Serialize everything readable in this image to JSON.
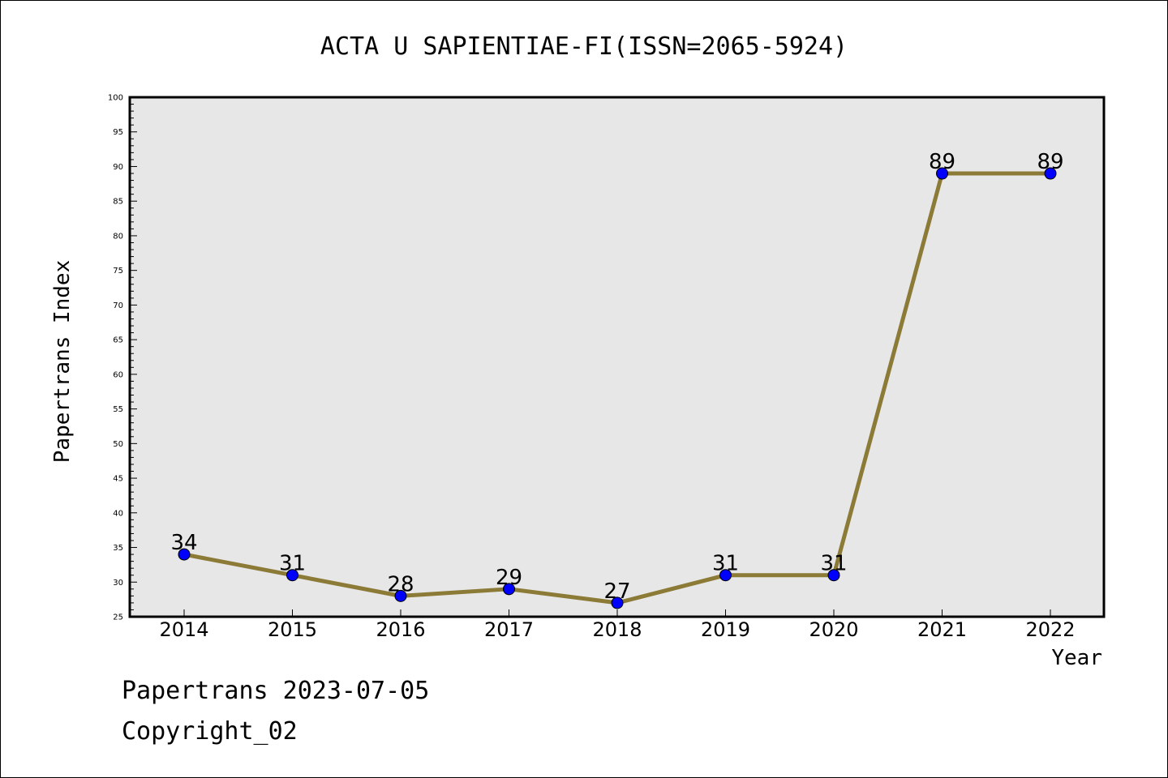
{
  "chart_data": {
    "type": "line",
    "title": "ACTA U SAPIENTIAE-FI(ISSN=2065-5924)",
    "xlabel": "Year",
    "ylabel": "Papertrans Index",
    "categories": [
      "2014",
      "2015",
      "2016",
      "2017",
      "2018",
      "2019",
      "2020",
      "2021",
      "2022"
    ],
    "series": [
      {
        "values": [
          34,
          31,
          28,
          29,
          27,
          31,
          31,
          89,
          89
        ]
      }
    ],
    "ylim": [
      25,
      100
    ],
    "y_major_step": 5,
    "y_minor_step": 1,
    "data_labels": true,
    "grid": false,
    "colors": {
      "plot_background": "#e7e7e7",
      "line": "#8c7a37",
      "marker": "#0000ff"
    }
  },
  "footer": {
    "line1": "Papertrans 2023-07-05",
    "line2": "Copyright_02"
  }
}
